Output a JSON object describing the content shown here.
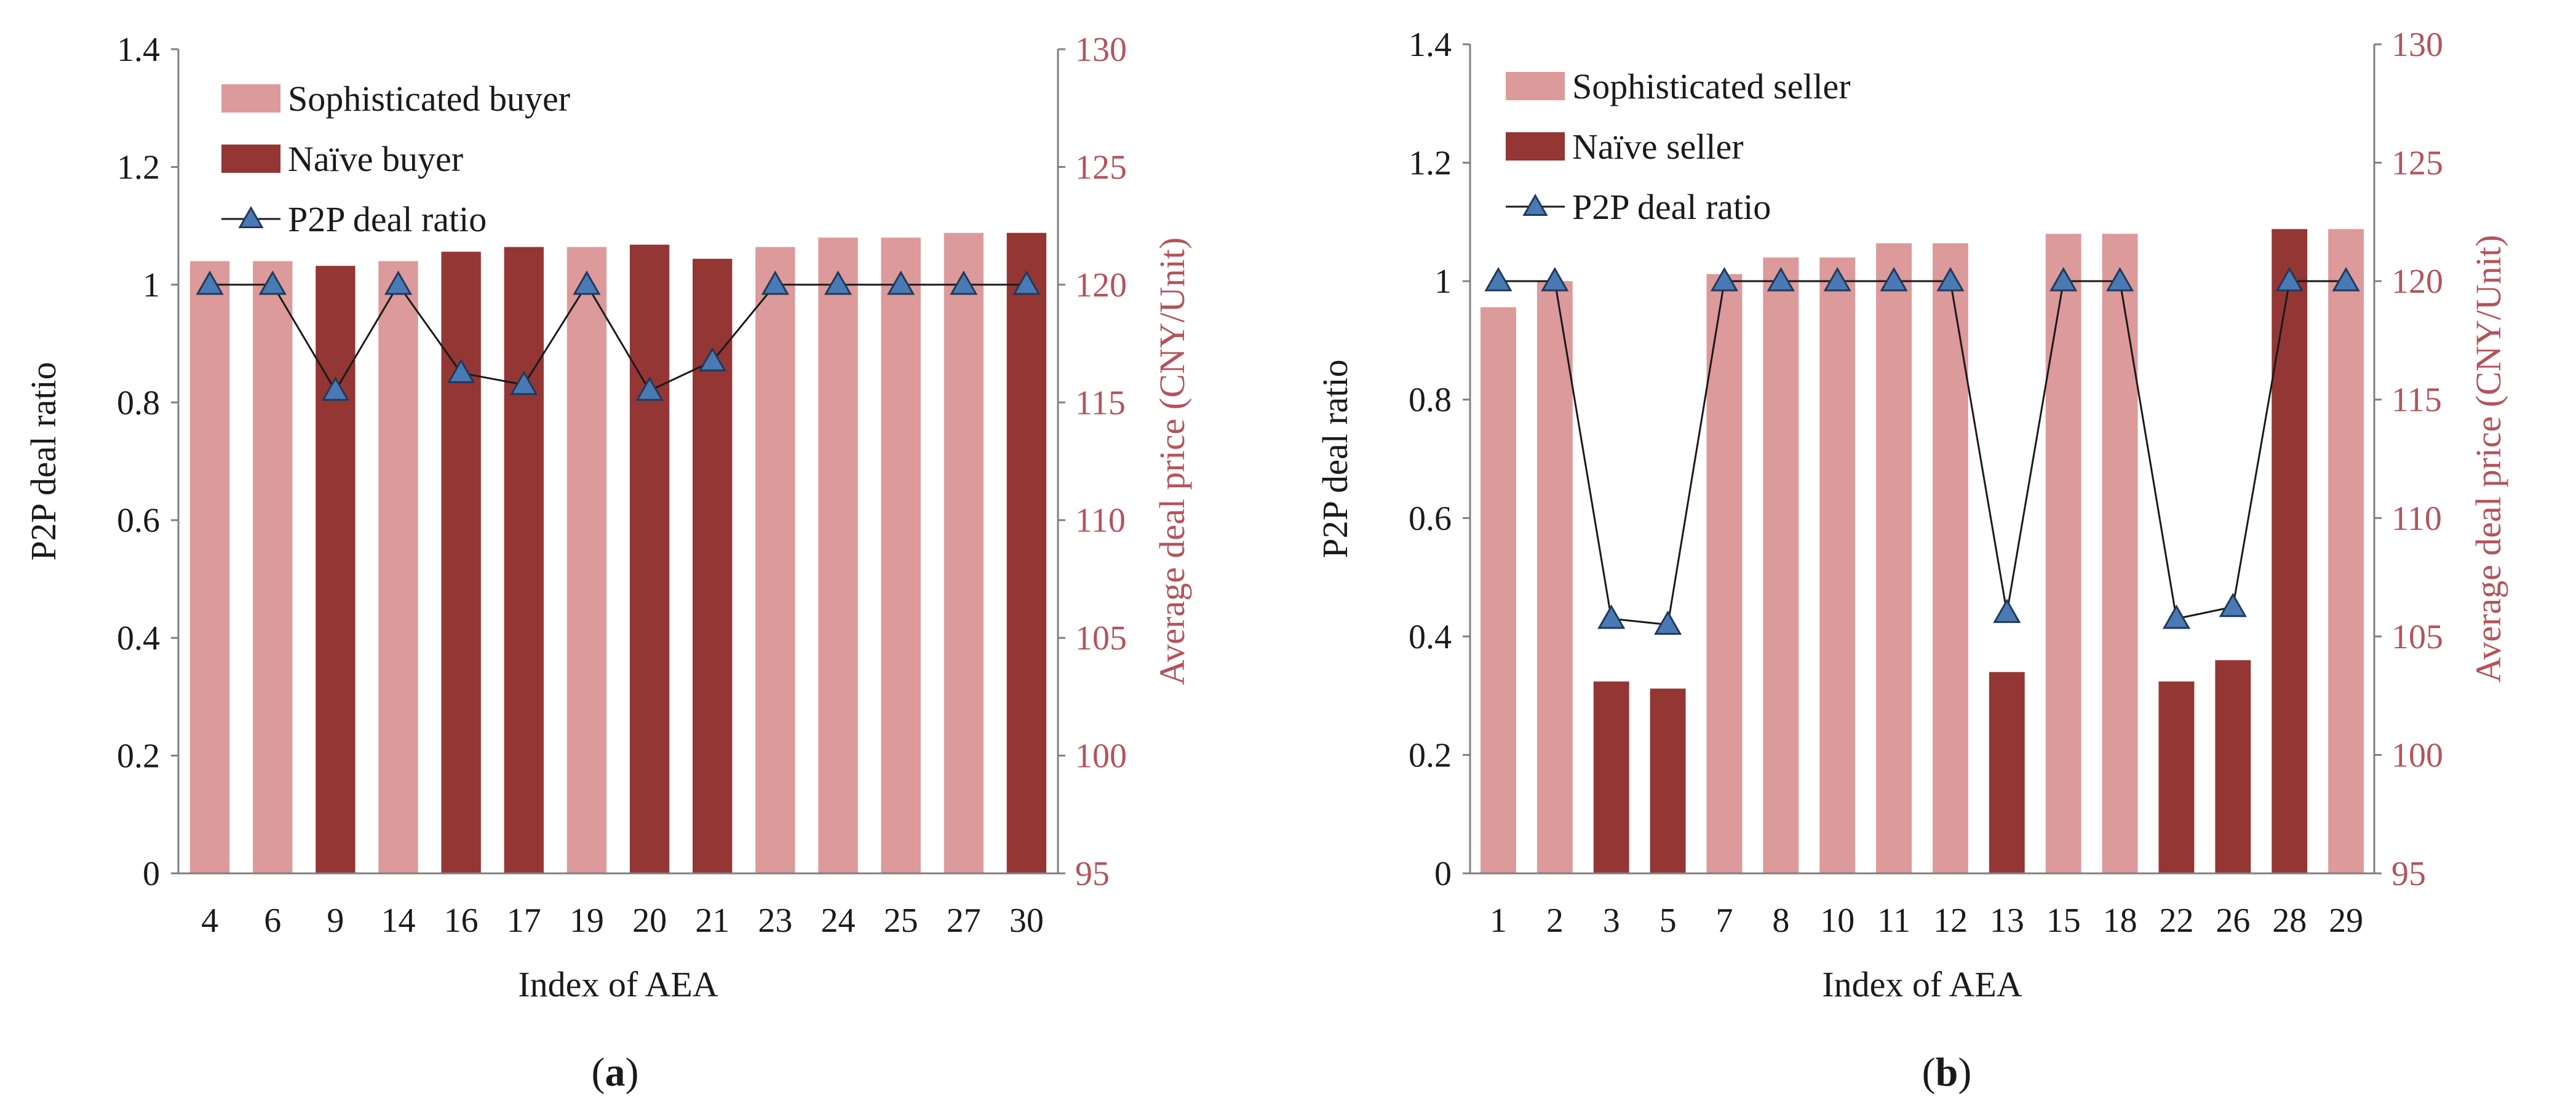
{
  "colors": {
    "sophisticated": "#dc9a9a",
    "naive": "#943634",
    "line": "#1a1a1a",
    "marker_fill": "#4a7ab5",
    "marker_stroke": "#1f3a5a",
    "right_axis": "#b5535a",
    "axis": "#7f7f7f"
  },
  "chart_data": [
    {
      "type": "bar",
      "panel_label": {
        "open": "(",
        "letter": "a",
        "close": ")"
      },
      "xlabel": "Index of AEA",
      "ylabel": "P2P deal ratio",
      "ylabel_right": "Average deal price (CNY/Unit)",
      "ylim": [
        0,
        1.4
      ],
      "y_ticks": [
        "0",
        "0.2",
        "0.4",
        "0.6",
        "0.8",
        "1",
        "1.2",
        "1.4"
      ],
      "ylim_right": [
        95,
        130
      ],
      "y_ticks_right": [
        "95",
        "100",
        "105",
        "110",
        "115",
        "120",
        "125",
        "130"
      ],
      "legend": {
        "position": "top-left",
        "items": [
          "Sophisticated buyer",
          "Naïve buyer",
          "P2P deal ratio"
        ]
      },
      "categories": [
        "4",
        "6",
        "9",
        "14",
        "16",
        "17",
        "19",
        "20",
        "21",
        "23",
        "24",
        "25",
        "27",
        "30"
      ],
      "agent_type": [
        "sophisticated",
        "sophisticated",
        "naive",
        "sophisticated",
        "naive",
        "naive",
        "sophisticated",
        "naive",
        "naive",
        "sophisticated",
        "sophisticated",
        "sophisticated",
        "sophisticated",
        "naive"
      ],
      "series": [
        {
          "name": "Average deal price (CNY/Unit)",
          "axis": "right",
          "values": [
            121.0,
            121.0,
            120.8,
            121.0,
            121.4,
            121.6,
            121.6,
            121.7,
            121.1,
            121.6,
            122.0,
            122.0,
            122.2,
            122.2
          ]
        },
        {
          "name": "P2P deal ratio",
          "axis": "left",
          "values": [
            1.0,
            1.0,
            0.82,
            1.0,
            0.85,
            0.83,
            1.0,
            0.82,
            0.87,
            1.0,
            1.0,
            1.0,
            1.0,
            1.0
          ]
        }
      ]
    },
    {
      "type": "bar",
      "panel_label": {
        "open": "(",
        "letter": "b",
        "close": ")"
      },
      "xlabel": "Index of AEA",
      "ylabel": "P2P deal ratio",
      "ylabel_right": "Average deal price (CNY/Unit)",
      "ylim": [
        0,
        1.4
      ],
      "y_ticks": [
        "0",
        "0.2",
        "0.4",
        "0.6",
        "0.8",
        "1",
        "1.2",
        "1.4"
      ],
      "ylim_right": [
        95,
        130
      ],
      "y_ticks_right": [
        "95",
        "100",
        "105",
        "110",
        "115",
        "120",
        "125",
        "130"
      ],
      "legend": {
        "position": "top-left",
        "items": [
          "Sophisticated seller",
          "Naïve seller",
          "P2P deal ratio"
        ]
      },
      "categories": [
        "1",
        "2",
        "3",
        "5",
        "7",
        "8",
        "10",
        "11",
        "12",
        "13",
        "15",
        "18",
        "22",
        "26",
        "28",
        "29"
      ],
      "agent_type": [
        "sophisticated",
        "sophisticated",
        "naive",
        "naive",
        "sophisticated",
        "sophisticated",
        "sophisticated",
        "sophisticated",
        "sophisticated",
        "naive",
        "sophisticated",
        "sophisticated",
        "naive",
        "naive",
        "naive",
        "sophisticated"
      ],
      "series": [
        {
          "name": "Average deal price (CNY/Unit)",
          "axis": "right",
          "values": [
            118.9,
            120.0,
            103.1,
            102.8,
            120.3,
            121.0,
            121.0,
            121.6,
            121.6,
            103.5,
            122.0,
            122.0,
            103.1,
            104.0,
            122.2,
            122.2
          ]
        },
        {
          "name": "P2P deal ratio",
          "axis": "left",
          "values": [
            1.0,
            1.0,
            0.43,
            0.42,
            1.0,
            1.0,
            1.0,
            1.0,
            1.0,
            0.44,
            1.0,
            1.0,
            0.43,
            0.45,
            1.0,
            1.0
          ]
        }
      ]
    }
  ]
}
